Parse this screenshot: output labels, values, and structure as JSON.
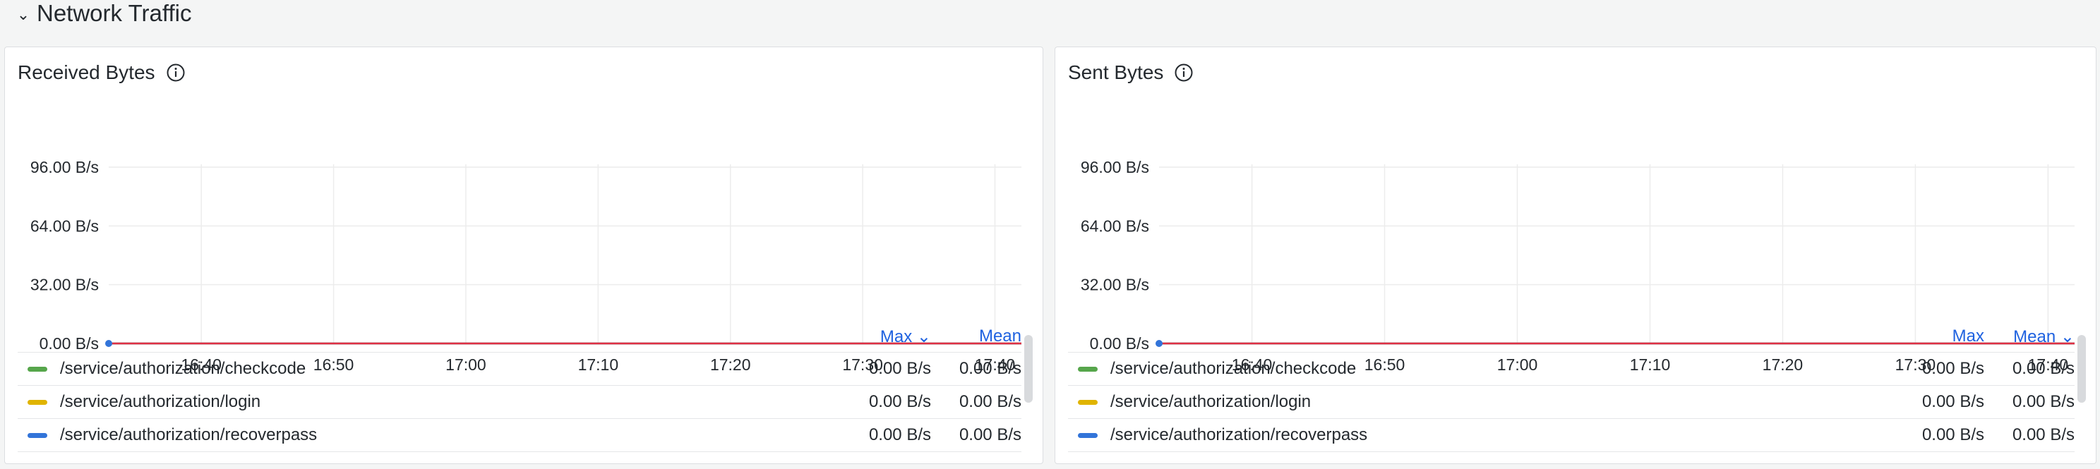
{
  "row": {
    "title": "Network Traffic"
  },
  "panels": [
    {
      "title": "Received Bytes",
      "legend": {
        "columns": [
          "Max",
          "Mean"
        ],
        "sorted_column": "Max",
        "rows": [
          {
            "name": "/service/authorization/checkcode",
            "color": "#56a64b",
            "max": "0.00 B/s",
            "mean": "0.00 B/s"
          },
          {
            "name": "/service/authorization/login",
            "color": "#e0b400",
            "max": "0.00 B/s",
            "mean": "0.00 B/s"
          },
          {
            "name": "/service/authorization/recoverpass",
            "color": "#3274d9",
            "max": "0.00 B/s",
            "mean": "0.00 B/s"
          }
        ]
      }
    },
    {
      "title": "Sent Bytes",
      "legend": {
        "columns": [
          "Max",
          "Mean"
        ],
        "sorted_column": "Mean",
        "rows": [
          {
            "name": "/service/authorization/checkcode",
            "color": "#56a64b",
            "max": "0.00 B/s",
            "mean": "0.00 B/s"
          },
          {
            "name": "/service/authorization/login",
            "color": "#e0b400",
            "max": "0.00 B/s",
            "mean": "0.00 B/s"
          },
          {
            "name": "/service/authorization/recoverpass",
            "color": "#3274d9",
            "max": "0.00 B/s",
            "mean": "0.00 B/s"
          }
        ]
      }
    }
  ],
  "chart_data": [
    {
      "type": "line",
      "title": "Received Bytes",
      "x_ticks": [
        "16:40",
        "16:50",
        "17:00",
        "17:10",
        "17:20",
        "17:30",
        "17:40"
      ],
      "y_ticks": [
        "0.00 B/s",
        "32.00 B/s",
        "64.00 B/s",
        "96.00 B/s"
      ],
      "ylim": [
        0,
        96
      ],
      "x_range": [
        "16:33",
        "17:42"
      ],
      "grid": true,
      "series": [
        {
          "name": "/service/authorization/checkcode",
          "color": "#56a64b",
          "x": [
            "16:33",
            "17:42"
          ],
          "values": [
            0,
            0
          ]
        },
        {
          "name": "/service/authorization/login",
          "color": "#e0b400",
          "x": [
            "16:33",
            "17:42"
          ],
          "values": [
            0,
            0
          ]
        },
        {
          "name": "/service/authorization/recoverpass",
          "color": "#3274d9",
          "x": [
            "16:33",
            "17:42"
          ],
          "values": [
            0,
            0
          ]
        }
      ],
      "line_color_top": "#e02f44"
    },
    {
      "type": "line",
      "title": "Sent Bytes",
      "x_ticks": [
        "16:40",
        "16:50",
        "17:00",
        "17:10",
        "17:20",
        "17:30",
        "17:40"
      ],
      "y_ticks": [
        "0.00 B/s",
        "32.00 B/s",
        "64.00 B/s",
        "96.00 B/s"
      ],
      "ylim": [
        0,
        96
      ],
      "x_range": [
        "16:33",
        "17:42"
      ],
      "grid": true,
      "series": [
        {
          "name": "/service/authorization/checkcode",
          "color": "#56a64b",
          "x": [
            "16:33",
            "17:42"
          ],
          "values": [
            0,
            0
          ]
        },
        {
          "name": "/service/authorization/login",
          "color": "#e0b400",
          "x": [
            "16:33",
            "17:42"
          ],
          "values": [
            0,
            0
          ]
        },
        {
          "name": "/service/authorization/recoverpass",
          "color": "#3274d9",
          "x": [
            "16:33",
            "17:42"
          ],
          "values": [
            0,
            0
          ]
        }
      ],
      "line_color_top": "#e02f44"
    }
  ]
}
